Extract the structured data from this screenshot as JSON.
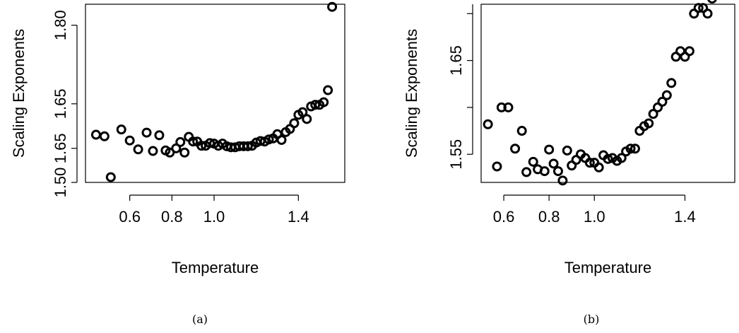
{
  "chart_data": [
    {
      "panel_label": "(a)",
      "type": "scatter",
      "xlabel": "Temperature",
      "ylabel": "Scaling Exponents",
      "x_ticks": [
        "0.6",
        "0.8",
        "1.0",
        "1.4"
      ],
      "x_tick_values": [
        0.6,
        0.8,
        1.0,
        1.4
      ],
      "y_ticks": [
        "1.50",
        "1.65",
        "1.65",
        "1.80"
      ],
      "ylim": [
        1.5,
        1.84
      ],
      "xlim": [
        0.39,
        1.62
      ],
      "marker": "open-circle",
      "series": [
        {
          "x": [
            0.44,
            0.48,
            0.51,
            0.56,
            0.6,
            0.64,
            0.68,
            0.71,
            0.74,
            0.77,
            0.79,
            0.82,
            0.84,
            0.86,
            0.88,
            0.9,
            0.92,
            0.94,
            0.96,
            0.98,
            1.0,
            1.02,
            1.04,
            1.06,
            1.08,
            1.1,
            1.12,
            1.14,
            1.16,
            1.18,
            1.2,
            1.22,
            1.24,
            1.26,
            1.28,
            1.3,
            1.32,
            1.34,
            1.36,
            1.38,
            1.4,
            1.42,
            1.44,
            1.46,
            1.48,
            1.5,
            1.52,
            1.54,
            1.56
          ],
          "y": [
            1.591,
            1.588,
            1.51,
            1.601,
            1.58,
            1.563,
            1.595,
            1.56,
            1.59,
            1.561,
            1.557,
            1.565,
            1.577,
            1.557,
            1.587,
            1.578,
            1.578,
            1.57,
            1.57,
            1.575,
            1.574,
            1.57,
            1.574,
            1.569,
            1.567,
            1.567,
            1.569,
            1.569,
            1.569,
            1.57,
            1.576,
            1.579,
            1.578,
            1.582,
            1.584,
            1.592,
            1.581,
            1.596,
            1.602,
            1.613,
            1.629,
            1.634,
            1.621,
            1.645,
            1.648,
            1.648,
            1.653,
            1.676,
            1.835
          ]
        }
      ]
    },
    {
      "panel_label": "(b)",
      "type": "scatter",
      "xlabel": "Temperature",
      "ylabel": "Scaling Exponents",
      "x_ticks": [
        "0.6",
        "0.8",
        "1.0",
        "1.4"
      ],
      "x_tick_values": [
        0.6,
        0.8,
        1.0,
        1.4
      ],
      "y_ticks": [
        "1.55",
        "1.65"
      ],
      "ylim": [
        1.52,
        1.71
      ],
      "xlim": [
        0.5,
        1.62
      ],
      "marker": "open-circle",
      "series": [
        {
          "x": [
            0.53,
            0.57,
            0.59,
            0.62,
            0.65,
            0.68,
            0.7,
            0.73,
            0.75,
            0.78,
            0.8,
            0.82,
            0.84,
            0.86,
            0.88,
            0.9,
            0.92,
            0.94,
            0.96,
            0.98,
            1.0,
            1.02,
            1.04,
            1.06,
            1.08,
            1.1,
            1.12,
            1.14,
            1.16,
            1.18,
            1.2,
            1.22,
            1.24,
            1.26,
            1.28,
            1.3,
            1.32,
            1.34,
            1.36,
            1.38,
            1.4,
            1.42,
            1.44,
            1.46,
            1.48,
            1.5,
            1.52
          ],
          "y": [
            1.582,
            1.537,
            1.6,
            1.6,
            1.556,
            1.575,
            1.531,
            1.542,
            1.534,
            1.532,
            1.555,
            1.54,
            1.532,
            1.522,
            1.554,
            1.538,
            1.544,
            1.55,
            1.546,
            1.541,
            1.541,
            1.536,
            1.549,
            1.545,
            1.546,
            1.543,
            1.546,
            1.553,
            1.556,
            1.556,
            1.575,
            1.58,
            1.583,
            1.593,
            1.6,
            1.606,
            1.613,
            1.626,
            1.654,
            1.66,
            1.654,
            1.66,
            1.7,
            1.706,
            1.706,
            1.7,
            1.716
          ]
        }
      ]
    }
  ]
}
